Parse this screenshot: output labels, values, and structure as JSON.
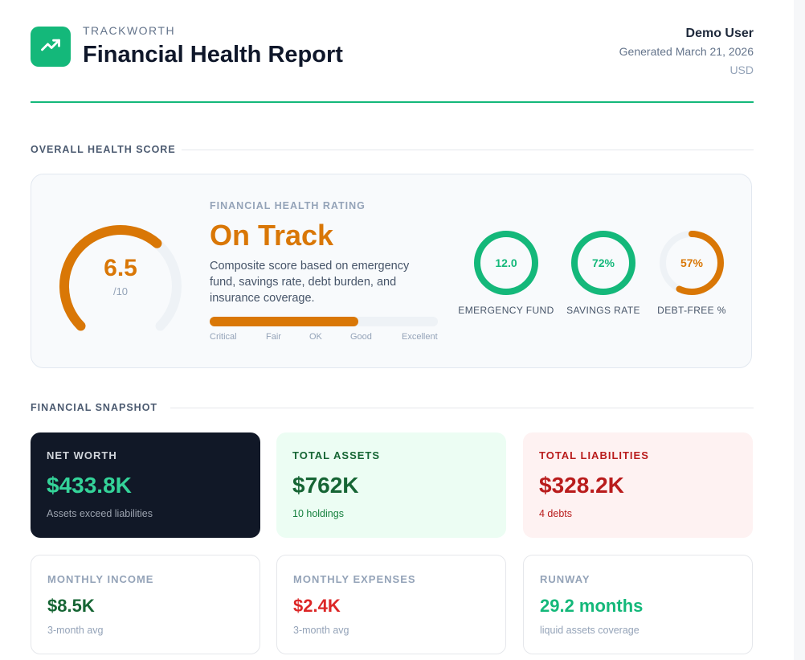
{
  "header": {
    "brand": "TRACKWORTH",
    "title": "Financial Health Report",
    "user": "Demo User",
    "generated": "Generated March 21, 2026",
    "currency": "USD",
    "logo_icon": "trending-up-icon"
  },
  "sections": {
    "health": "OVERALL HEALTH SCORE",
    "snapshot": "FINANCIAL SNAPSHOT"
  },
  "health": {
    "score": "6.5",
    "score_max": "/10",
    "score_fraction": 0.65,
    "rating_label": "FINANCIAL HEALTH RATING",
    "rating": "On Track",
    "description": "Composite score based on emergency fund, savings rate, debt burden, and insurance coverage.",
    "scale_fraction": 0.65,
    "scale": [
      "Critical",
      "Fair",
      "OK",
      "Good",
      "Excellent"
    ],
    "metrics": [
      {
        "value": "12.0",
        "label": "EMERGENCY FUND",
        "fraction": 1.0,
        "color": "#14b87a"
      },
      {
        "value": "72%",
        "label": "SAVINGS RATE",
        "fraction": 1.0,
        "color": "#14b87a"
      },
      {
        "value": "57%",
        "label": "DEBT-FREE %",
        "fraction": 0.57,
        "color": "#d97706"
      }
    ],
    "colors": {
      "accent": "#d97706",
      "good": "#14b87a"
    }
  },
  "snapshot": {
    "net_worth": {
      "label": "NET WORTH",
      "value": "$433.8K",
      "sub": "Assets exceed liabilities"
    },
    "total_assets": {
      "label": "TOTAL ASSETS",
      "value": "$762K",
      "sub": "10 holdings"
    },
    "total_liabilities": {
      "label": "TOTAL LIABILITIES",
      "value": "$328.2K",
      "sub": "4 debts"
    },
    "monthly_income": {
      "label": "MONTHLY INCOME",
      "value": "$8.5K",
      "sub": "3-month avg"
    },
    "monthly_expenses": {
      "label": "MONTHLY EXPENSES",
      "value": "$2.4K",
      "sub": "3-month avg"
    },
    "runway": {
      "label": "RUNWAY",
      "value": "29.2 months",
      "sub": "liquid assets coverage"
    }
  }
}
